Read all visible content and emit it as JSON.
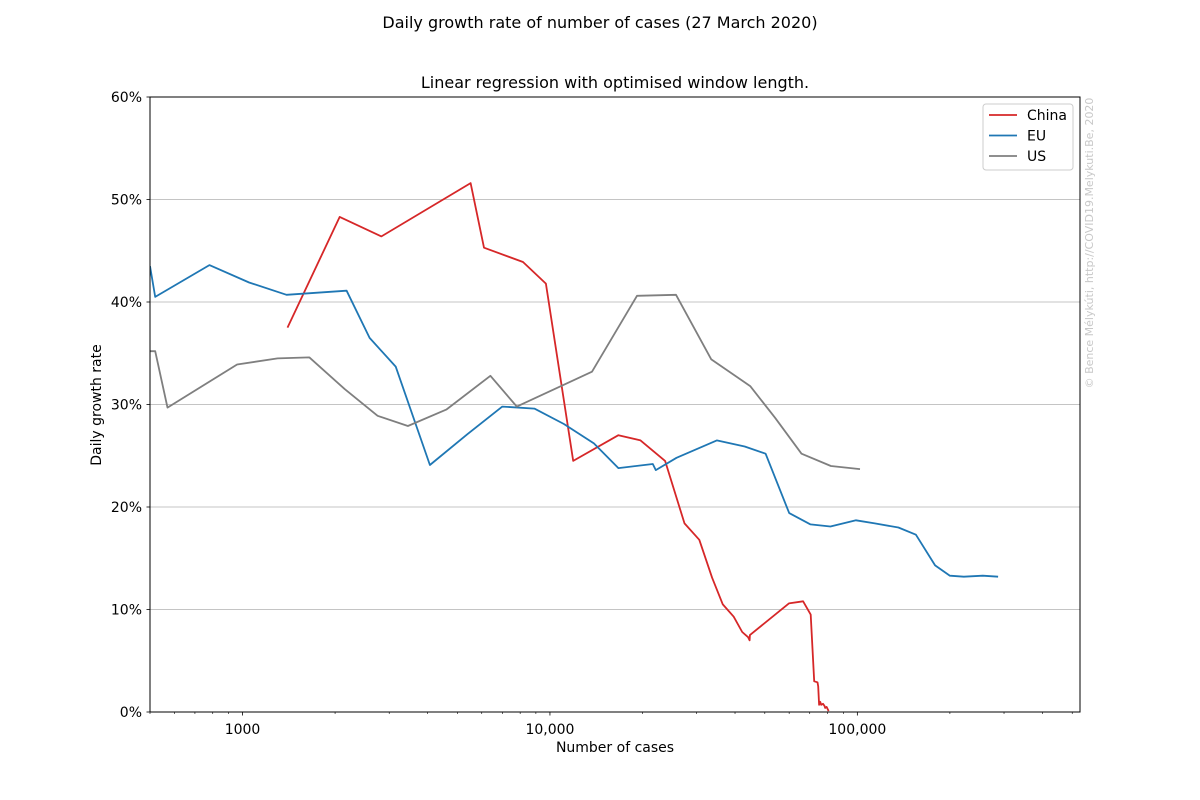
{
  "chart_data": {
    "type": "line",
    "title": "Daily growth rate of number of cases (27 March 2020)",
    "subtitle": "Linear regression with optimised window length.",
    "xlabel": "Number of cases",
    "ylabel": "Daily growth rate",
    "x_scale": "log",
    "xlim": [
      500,
      530000
    ],
    "ylim": [
      0,
      0.6
    ],
    "x_ticks": [
      {
        "value": 1000,
        "label": "1000"
      },
      {
        "value": 10000,
        "label": "10,000"
      },
      {
        "value": 100000,
        "label": "100,000"
      }
    ],
    "y_ticks": [
      {
        "value": 0.0,
        "label": "0%"
      },
      {
        "value": 0.1,
        "label": "10%"
      },
      {
        "value": 0.2,
        "label": "20%"
      },
      {
        "value": 0.3,
        "label": "30%"
      },
      {
        "value": 0.4,
        "label": "40%"
      },
      {
        "value": 0.5,
        "label": "50%"
      },
      {
        "value": 0.6,
        "label": "60%"
      }
    ],
    "grid": "horizontal",
    "legend_position": "top-right",
    "watermark": "© Bence Mélykúti, http://COVID19.Melykuti.Be, 2020",
    "series": [
      {
        "name": "China",
        "color": "#d62728",
        "points": [
          [
            1400,
            0.375
          ],
          [
            2070,
            0.483
          ],
          [
            2830,
            0.464
          ],
          [
            5520,
            0.516
          ],
          [
            6100,
            0.453
          ],
          [
            8170,
            0.439
          ],
          [
            9700,
            0.418
          ],
          [
            11900,
            0.245
          ],
          [
            16700,
            0.27
          ],
          [
            19700,
            0.265
          ],
          [
            23700,
            0.245
          ],
          [
            27400,
            0.184
          ],
          [
            30600,
            0.168
          ],
          [
            33700,
            0.131
          ],
          [
            36500,
            0.105
          ],
          [
            39600,
            0.093
          ],
          [
            42200,
            0.078
          ],
          [
            44100,
            0.073
          ],
          [
            44600,
            0.07
          ],
          [
            44700,
            0.075
          ],
          [
            59900,
            0.106
          ],
          [
            66600,
            0.108
          ],
          [
            70500,
            0.095
          ],
          [
            72400,
            0.03
          ],
          [
            74200,
            0.029
          ],
          [
            74600,
            0.025
          ],
          [
            75100,
            0.007
          ],
          [
            75700,
            0.01
          ],
          [
            76300,
            0.007
          ],
          [
            77300,
            0.008
          ],
          [
            78200,
            0.006
          ],
          [
            78600,
            0.004
          ],
          [
            79400,
            0.005
          ],
          [
            80300,
            0.002
          ],
          [
            80700,
            0.001
          ]
        ]
      },
      {
        "name": "EU",
        "color": "#1f77b4",
        "points": [
          [
            500,
            0.435
          ],
          [
            520,
            0.405
          ],
          [
            780,
            0.436
          ],
          [
            1050,
            0.419
          ],
          [
            1390,
            0.407
          ],
          [
            2180,
            0.411
          ],
          [
            2590,
            0.365
          ],
          [
            3150,
            0.337
          ],
          [
            4070,
            0.241
          ],
          [
            5390,
            0.271
          ],
          [
            7000,
            0.298
          ],
          [
            8900,
            0.296
          ],
          [
            11100,
            0.281
          ],
          [
            13900,
            0.262
          ],
          [
            16700,
            0.238
          ],
          [
            21600,
            0.242
          ],
          [
            22100,
            0.236
          ],
          [
            25800,
            0.248
          ],
          [
            34900,
            0.265
          ],
          [
            43000,
            0.259
          ],
          [
            50300,
            0.252
          ],
          [
            60000,
            0.194
          ],
          [
            70400,
            0.183
          ],
          [
            81700,
            0.181
          ],
          [
            99000,
            0.187
          ],
          [
            114000,
            0.184
          ],
          [
            136000,
            0.18
          ],
          [
            155000,
            0.173
          ],
          [
            179000,
            0.143
          ],
          [
            200000,
            0.133
          ],
          [
            222000,
            0.132
          ],
          [
            256000,
            0.133
          ],
          [
            287000,
            0.132
          ]
        ]
      },
      {
        "name": "US",
        "color": "#7f7f7f",
        "points": [
          [
            500,
            0.352
          ],
          [
            520,
            0.352
          ],
          [
            570,
            0.297
          ],
          [
            960,
            0.339
          ],
          [
            1300,
            0.345
          ],
          [
            1650,
            0.346
          ],
          [
            2150,
            0.315
          ],
          [
            2750,
            0.289
          ],
          [
            3450,
            0.279
          ],
          [
            4600,
            0.295
          ],
          [
            6400,
            0.328
          ],
          [
            7800,
            0.298
          ],
          [
            13700,
            0.332
          ],
          [
            19200,
            0.406
          ],
          [
            25700,
            0.407
          ],
          [
            33500,
            0.344
          ],
          [
            44800,
            0.318
          ],
          [
            54000,
            0.287
          ],
          [
            65800,
            0.252
          ],
          [
            82000,
            0.24
          ],
          [
            102000,
            0.237
          ]
        ]
      }
    ]
  }
}
